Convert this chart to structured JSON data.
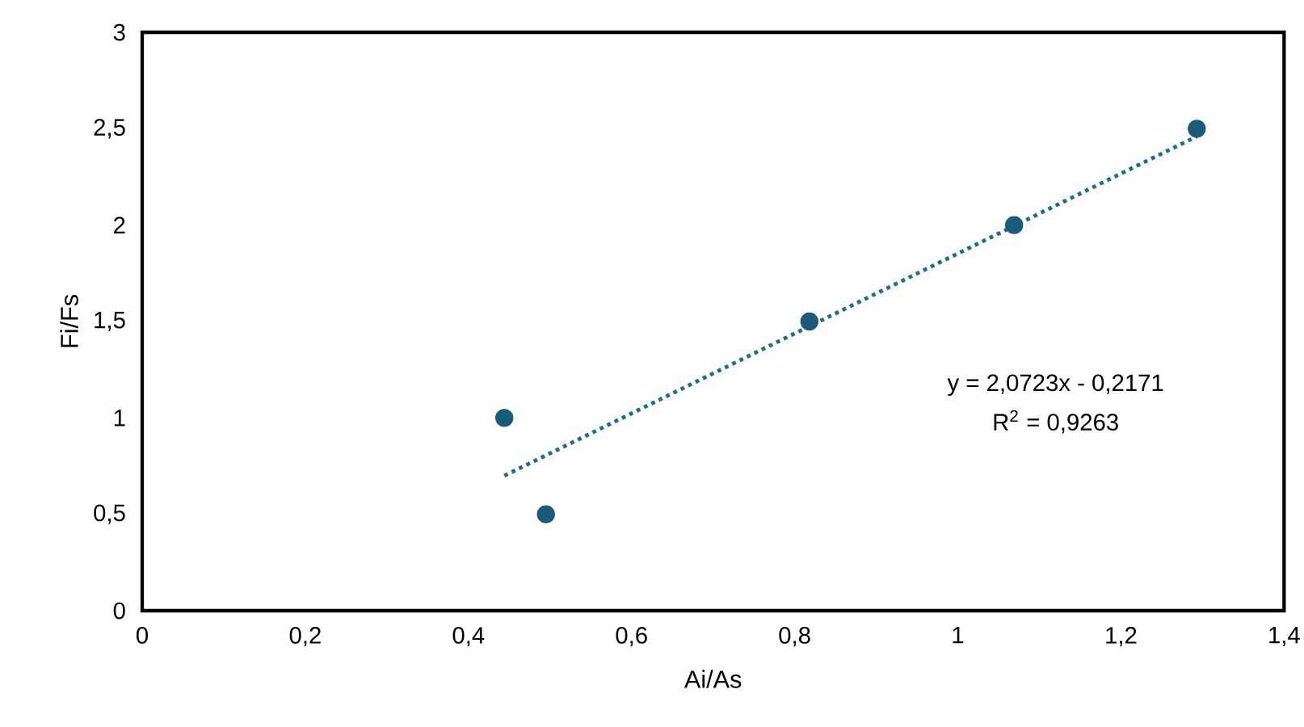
{
  "chart_data": {
    "type": "scatter",
    "xlabel": "Ai/As",
    "ylabel": "Fi/Fs",
    "xlim": [
      0,
      1.4
    ],
    "ylim": [
      0,
      3
    ],
    "xticks": [
      0,
      {
        "value": 0.2,
        "label": "0,2"
      },
      {
        "value": 0.4,
        "label": "0,4"
      },
      {
        "value": 0.6,
        "label": "0,6"
      },
      {
        "value": 0.8,
        "label": "0,8"
      },
      1,
      {
        "value": 1.2,
        "label": "1,2"
      },
      {
        "value": 1.4,
        "label": "1,4"
      }
    ],
    "yticks": [
      0,
      {
        "value": 0.5,
        "label": "0,5"
      },
      1,
      {
        "value": 1.5,
        "label": "1,5"
      },
      2,
      {
        "value": 2.5,
        "label": "2,5"
      },
      3
    ],
    "series": [
      {
        "marker": "circle",
        "color": "#1a5a7a",
        "x": [
          0.444,
          0.495,
          0.818,
          1.069,
          1.293
        ],
        "values": [
          1,
          0.5,
          1.5,
          2,
          2.5
        ]
      },
      {
        "type": "line",
        "color": "#1f6d8c",
        "line_style": "dotted",
        "marker": "none",
        "x": [
          0.444,
          1.293
        ],
        "values": [
          0.7,
          2.46
        ]
      }
    ],
    "annotations": [
      "y = 2,0723x - 0,2171",
      "R$^{2}$ = 0,9263"
    ]
  }
}
